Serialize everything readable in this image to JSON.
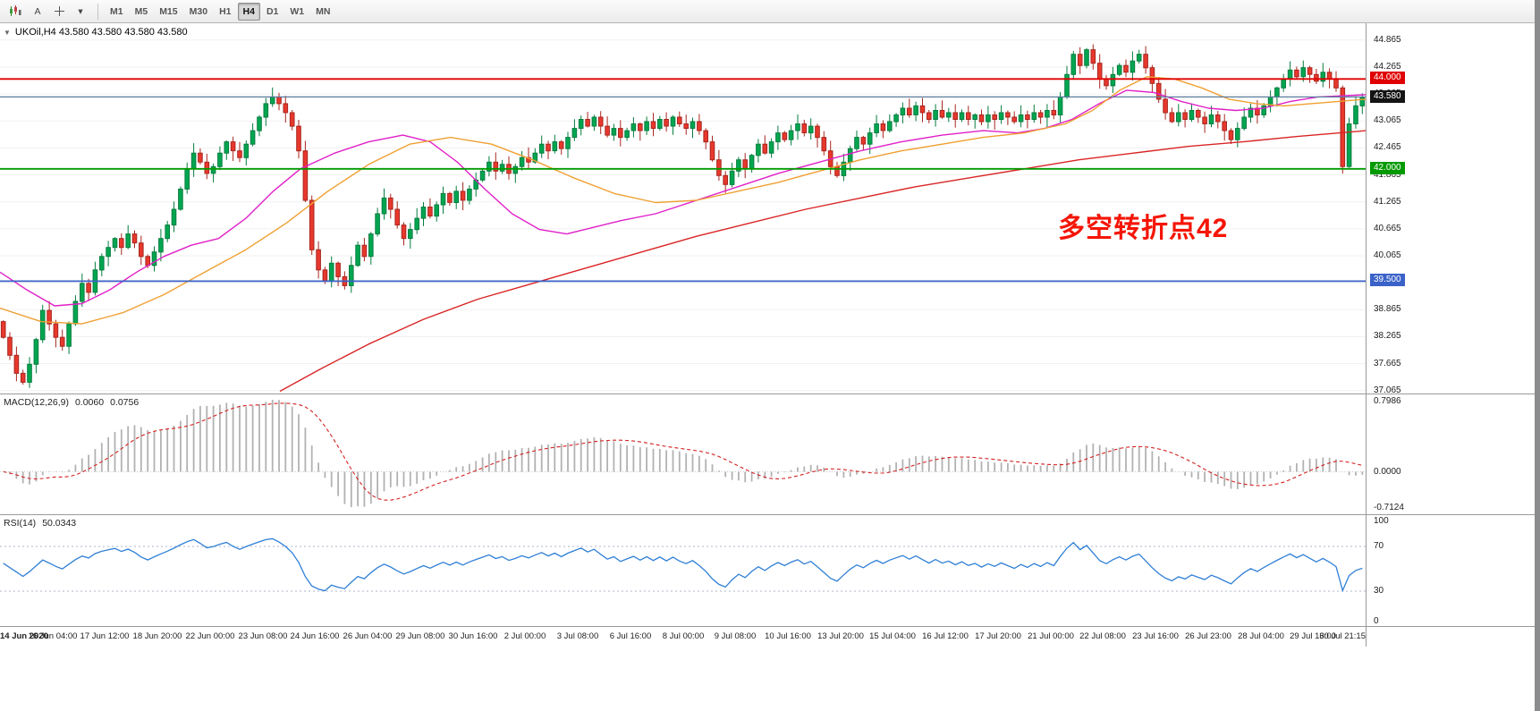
{
  "toolbar": {
    "text_tool_label": "A",
    "dropdown_glyph": "▾",
    "timeframes": [
      "M1",
      "M5",
      "M15",
      "M30",
      "H1",
      "H4",
      "D1",
      "W1",
      "MN"
    ],
    "active_timeframe": "H4"
  },
  "chart": {
    "title": "UKOil,H4 43.580 43.580 43.580 43.580",
    "collapse_arrow": "▼",
    "annotation": {
      "text": "多空转折点42",
      "color": "#f51505"
    },
    "price_axis_labels": [
      "44.865",
      "44.265",
      "43.665",
      "43.065",
      "42.465",
      "41.865",
      "41.265",
      "40.665",
      "40.065",
      "39.465",
      "38.865",
      "38.265",
      "37.665",
      "37.065"
    ],
    "levels": [
      {
        "value": 44.0,
        "label": "44.000",
        "color": "#e00000"
      },
      {
        "value": 42.0,
        "label": "42.000",
        "color": "#009a00"
      },
      {
        "value": 39.5,
        "label": "39.500",
        "color": "#3a62c8"
      }
    ],
    "current_price": {
      "value": 43.58,
      "label": "43.580",
      "badge_color": "#141414",
      "line_value": 43.6,
      "line_color": "#5b7b9d"
    },
    "time_axis_labels": [
      "14 Jun 2020",
      "16 Jun 04:00",
      "17 Jun 12:00",
      "18 Jun 20:00",
      "22 Jun 00:00",
      "23 Jun 08:00",
      "24 Jun 16:00",
      "26 Jun 04:00",
      "29 Jun 08:00",
      "30 Jun 16:00",
      "2 Jul 00:00",
      "3 Jul 08:00",
      "6 Jul 16:00",
      "8 Jul 00:00",
      "9 Jul 08:00",
      "10 Jul 16:00",
      "13 Jul 20:00",
      "15 Jul 04:00",
      "16 Jul 12:00",
      "17 Jul 20:00",
      "21 Jul 00:00",
      "22 Jul 08:00",
      "23 Jul 16:00",
      "26 Jul 23:00",
      "28 Jul 04:00",
      "29 Jul 16:00",
      "30 Jul 21:15"
    ]
  },
  "macd": {
    "label": "MACD(12,26,9)",
    "value_main": "0.0060",
    "value_signal": "0.0756",
    "axis_labels": [
      "0.7986",
      "0.0000",
      "-0.7124"
    ]
  },
  "rsi": {
    "label": "RSI(14)",
    "value": "50.0343",
    "axis_labels": [
      "100",
      "70",
      "30",
      "0"
    ],
    "guide_levels": [
      70,
      30
    ]
  },
  "chart_data": {
    "type": "candlestick",
    "symbol": "UKOil",
    "timeframe": "H4",
    "visible_price_range": [
      37.0,
      45.24
    ],
    "colors": {
      "up": "#00a650",
      "up_border": "#067d3f",
      "down": "#e8382d",
      "down_border": "#a8261e"
    },
    "closes": [
      38.25,
      37.85,
      37.45,
      37.25,
      37.65,
      38.2,
      38.85,
      38.55,
      38.25,
      38.05,
      38.55,
      39.05,
      39.45,
      39.25,
      39.75,
      40.05,
      40.25,
      40.45,
      40.25,
      40.55,
      40.35,
      40.05,
      39.85,
      40.15,
      40.45,
      40.75,
      41.1,
      41.55,
      42.0,
      42.35,
      42.15,
      41.9,
      42.05,
      42.35,
      42.6,
      42.4,
      42.25,
      42.55,
      42.85,
      43.15,
      43.45,
      43.6,
      43.45,
      43.25,
      42.95,
      42.4,
      41.3,
      40.2,
      39.75,
      39.5,
      39.9,
      39.6,
      39.4,
      39.85,
      40.3,
      40.05,
      40.55,
      41.0,
      41.35,
      41.1,
      40.75,
      40.45,
      40.65,
      40.9,
      41.15,
      40.95,
      41.2,
      41.45,
      41.25,
      41.5,
      41.3,
      41.55,
      41.75,
      41.95,
      42.15,
      41.95,
      42.1,
      41.9,
      42.05,
      42.25,
      42.15,
      42.35,
      42.55,
      42.4,
      42.6,
      42.45,
      42.7,
      42.9,
      43.1,
      42.95,
      43.15,
      42.95,
      42.75,
      42.9,
      42.7,
      42.85,
      43.0,
      42.85,
      43.05,
      42.9,
      43.1,
      42.95,
      43.15,
      43.0,
      42.9,
      43.05,
      42.85,
      42.6,
      42.2,
      41.85,
      41.65,
      41.95,
      42.2,
      42.0,
      42.3,
      42.55,
      42.35,
      42.6,
      42.8,
      42.65,
      42.85,
      43.0,
      42.8,
      42.95,
      42.7,
      42.4,
      42.05,
      41.85,
      42.15,
      42.45,
      42.7,
      42.55,
      42.8,
      43.0,
      42.85,
      43.05,
      43.2,
      43.35,
      43.2,
      43.4,
      43.25,
      43.1,
      43.3,
      43.15,
      43.25,
      43.1,
      43.25,
      43.1,
      43.2,
      43.05,
      43.2,
      43.1,
      43.25,
      43.15,
      43.05,
      43.2,
      43.1,
      43.25,
      43.15,
      43.3,
      43.2,
      43.6,
      44.1,
      44.55,
      44.3,
      44.65,
      44.35,
      44.0,
      43.85,
      44.1,
      44.3,
      44.15,
      44.4,
      44.55,
      44.25,
      43.9,
      43.55,
      43.25,
      43.05,
      43.25,
      43.1,
      43.3,
      43.15,
      43.0,
      43.2,
      43.05,
      42.85,
      42.65,
      42.9,
      43.15,
      43.35,
      43.2,
      43.4,
      43.6,
      43.8,
      44.0,
      44.2,
      44.05,
      44.25,
      44.1,
      43.95,
      44.15,
      44.0,
      43.8,
      42.05,
      43.0,
      43.4,
      43.58
    ],
    "moving_averages": [
      {
        "name": "fast-magenta",
        "color": "#e020c8",
        "points": [
          [
            0,
            39.7
          ],
          [
            0.02,
            39.3
          ],
          [
            0.04,
            38.95
          ],
          [
            0.06,
            39.0
          ],
          [
            0.08,
            39.3
          ],
          [
            0.1,
            39.7
          ],
          [
            0.12,
            40.05
          ],
          [
            0.14,
            40.3
          ],
          [
            0.16,
            40.45
          ],
          [
            0.18,
            40.9
          ],
          [
            0.2,
            41.5
          ],
          [
            0.22,
            42.0
          ],
          [
            0.245,
            42.35
          ],
          [
            0.27,
            42.6
          ],
          [
            0.295,
            42.75
          ],
          [
            0.315,
            42.6
          ],
          [
            0.335,
            42.15
          ],
          [
            0.355,
            41.55
          ],
          [
            0.375,
            41.0
          ],
          [
            0.395,
            40.65
          ],
          [
            0.415,
            40.55
          ],
          [
            0.435,
            40.7
          ],
          [
            0.455,
            40.85
          ],
          [
            0.48,
            41.0
          ],
          [
            0.51,
            41.3
          ],
          [
            0.54,
            41.6
          ],
          [
            0.57,
            41.9
          ],
          [
            0.6,
            42.15
          ],
          [
            0.63,
            42.4
          ],
          [
            0.66,
            42.6
          ],
          [
            0.69,
            42.75
          ],
          [
            0.72,
            42.85
          ],
          [
            0.745,
            42.8
          ],
          [
            0.765,
            42.9
          ],
          [
            0.785,
            43.1
          ],
          [
            0.805,
            43.45
          ],
          [
            0.825,
            43.75
          ],
          [
            0.845,
            43.7
          ],
          [
            0.865,
            43.5
          ],
          [
            0.885,
            43.35
          ],
          [
            0.905,
            43.3
          ],
          [
            0.925,
            43.35
          ],
          [
            0.945,
            43.5
          ],
          [
            0.965,
            43.6
          ],
          [
            1,
            43.65
          ]
        ]
      },
      {
        "name": "mid-orange",
        "color": "#efa032",
        "points": [
          [
            0,
            38.9
          ],
          [
            0.03,
            38.6
          ],
          [
            0.06,
            38.55
          ],
          [
            0.09,
            38.8
          ],
          [
            0.12,
            39.2
          ],
          [
            0.15,
            39.7
          ],
          [
            0.18,
            40.2
          ],
          [
            0.21,
            40.8
          ],
          [
            0.24,
            41.5
          ],
          [
            0.27,
            42.1
          ],
          [
            0.3,
            42.55
          ],
          [
            0.33,
            42.7
          ],
          [
            0.36,
            42.55
          ],
          [
            0.39,
            42.2
          ],
          [
            0.42,
            41.8
          ],
          [
            0.45,
            41.45
          ],
          [
            0.48,
            41.25
          ],
          [
            0.51,
            41.3
          ],
          [
            0.54,
            41.5
          ],
          [
            0.57,
            41.7
          ],
          [
            0.6,
            41.95
          ],
          [
            0.63,
            42.2
          ],
          [
            0.66,
            42.4
          ],
          [
            0.69,
            42.55
          ],
          [
            0.72,
            42.7
          ],
          [
            0.75,
            42.8
          ],
          [
            0.78,
            43.0
          ],
          [
            0.8,
            43.3
          ],
          [
            0.82,
            43.75
          ],
          [
            0.84,
            44.05
          ],
          [
            0.86,
            44.0
          ],
          [
            0.88,
            43.8
          ],
          [
            0.9,
            43.55
          ],
          [
            0.92,
            43.45
          ],
          [
            0.94,
            43.4
          ],
          [
            0.96,
            43.45
          ],
          [
            0.98,
            43.5
          ],
          [
            1,
            43.55
          ]
        ]
      },
      {
        "name": "slow-red",
        "color": "#d92525",
        "points": [
          [
            0.205,
            37.05
          ],
          [
            0.235,
            37.55
          ],
          [
            0.27,
            38.1
          ],
          [
            0.31,
            38.65
          ],
          [
            0.35,
            39.1
          ],
          [
            0.39,
            39.45
          ],
          [
            0.43,
            39.8
          ],
          [
            0.47,
            40.15
          ],
          [
            0.51,
            40.5
          ],
          [
            0.55,
            40.8
          ],
          [
            0.59,
            41.1
          ],
          [
            0.63,
            41.35
          ],
          [
            0.67,
            41.6
          ],
          [
            0.71,
            41.8
          ],
          [
            0.75,
            42.0
          ],
          [
            0.79,
            42.2
          ],
          [
            0.83,
            42.35
          ],
          [
            0.87,
            42.5
          ],
          [
            0.91,
            42.6
          ],
          [
            0.95,
            42.72
          ],
          [
            1,
            42.85
          ]
        ]
      }
    ]
  }
}
